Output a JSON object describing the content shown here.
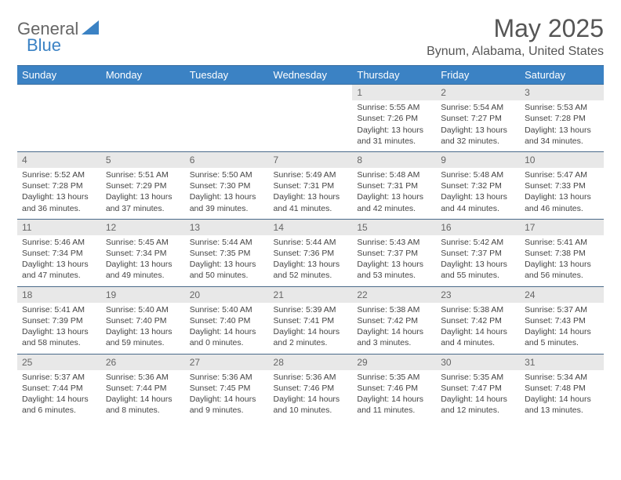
{
  "logo": {
    "general": "General",
    "blue": "Blue"
  },
  "title": "May 2025",
  "location": "Bynum, Alabama, United States",
  "colors": {
    "header_bg": "#3b82c4",
    "header_text": "#ffffff",
    "daynum_bg": "#e8e8e8",
    "text": "#444444",
    "border": "#4a6a8a"
  },
  "weekdays": [
    "Sunday",
    "Monday",
    "Tuesday",
    "Wednesday",
    "Thursday",
    "Friday",
    "Saturday"
  ],
  "weeks": [
    [
      null,
      null,
      null,
      null,
      {
        "n": "1",
        "sr": "5:55 AM",
        "ss": "7:26 PM",
        "dl": "13 hours and 31 minutes."
      },
      {
        "n": "2",
        "sr": "5:54 AM",
        "ss": "7:27 PM",
        "dl": "13 hours and 32 minutes."
      },
      {
        "n": "3",
        "sr": "5:53 AM",
        "ss": "7:28 PM",
        "dl": "13 hours and 34 minutes."
      }
    ],
    [
      {
        "n": "4",
        "sr": "5:52 AM",
        "ss": "7:28 PM",
        "dl": "13 hours and 36 minutes."
      },
      {
        "n": "5",
        "sr": "5:51 AM",
        "ss": "7:29 PM",
        "dl": "13 hours and 37 minutes."
      },
      {
        "n": "6",
        "sr": "5:50 AM",
        "ss": "7:30 PM",
        "dl": "13 hours and 39 minutes."
      },
      {
        "n": "7",
        "sr": "5:49 AM",
        "ss": "7:31 PM",
        "dl": "13 hours and 41 minutes."
      },
      {
        "n": "8",
        "sr": "5:48 AM",
        "ss": "7:31 PM",
        "dl": "13 hours and 42 minutes."
      },
      {
        "n": "9",
        "sr": "5:48 AM",
        "ss": "7:32 PM",
        "dl": "13 hours and 44 minutes."
      },
      {
        "n": "10",
        "sr": "5:47 AM",
        "ss": "7:33 PM",
        "dl": "13 hours and 46 minutes."
      }
    ],
    [
      {
        "n": "11",
        "sr": "5:46 AM",
        "ss": "7:34 PM",
        "dl": "13 hours and 47 minutes."
      },
      {
        "n": "12",
        "sr": "5:45 AM",
        "ss": "7:34 PM",
        "dl": "13 hours and 49 minutes."
      },
      {
        "n": "13",
        "sr": "5:44 AM",
        "ss": "7:35 PM",
        "dl": "13 hours and 50 minutes."
      },
      {
        "n": "14",
        "sr": "5:44 AM",
        "ss": "7:36 PM",
        "dl": "13 hours and 52 minutes."
      },
      {
        "n": "15",
        "sr": "5:43 AM",
        "ss": "7:37 PM",
        "dl": "13 hours and 53 minutes."
      },
      {
        "n": "16",
        "sr": "5:42 AM",
        "ss": "7:37 PM",
        "dl": "13 hours and 55 minutes."
      },
      {
        "n": "17",
        "sr": "5:41 AM",
        "ss": "7:38 PM",
        "dl": "13 hours and 56 minutes."
      }
    ],
    [
      {
        "n": "18",
        "sr": "5:41 AM",
        "ss": "7:39 PM",
        "dl": "13 hours and 58 minutes."
      },
      {
        "n": "19",
        "sr": "5:40 AM",
        "ss": "7:40 PM",
        "dl": "13 hours and 59 minutes."
      },
      {
        "n": "20",
        "sr": "5:40 AM",
        "ss": "7:40 PM",
        "dl": "14 hours and 0 minutes."
      },
      {
        "n": "21",
        "sr": "5:39 AM",
        "ss": "7:41 PM",
        "dl": "14 hours and 2 minutes."
      },
      {
        "n": "22",
        "sr": "5:38 AM",
        "ss": "7:42 PM",
        "dl": "14 hours and 3 minutes."
      },
      {
        "n": "23",
        "sr": "5:38 AM",
        "ss": "7:42 PM",
        "dl": "14 hours and 4 minutes."
      },
      {
        "n": "24",
        "sr": "5:37 AM",
        "ss": "7:43 PM",
        "dl": "14 hours and 5 minutes."
      }
    ],
    [
      {
        "n": "25",
        "sr": "5:37 AM",
        "ss": "7:44 PM",
        "dl": "14 hours and 6 minutes."
      },
      {
        "n": "26",
        "sr": "5:36 AM",
        "ss": "7:44 PM",
        "dl": "14 hours and 8 minutes."
      },
      {
        "n": "27",
        "sr": "5:36 AM",
        "ss": "7:45 PM",
        "dl": "14 hours and 9 minutes."
      },
      {
        "n": "28",
        "sr": "5:36 AM",
        "ss": "7:46 PM",
        "dl": "14 hours and 10 minutes."
      },
      {
        "n": "29",
        "sr": "5:35 AM",
        "ss": "7:46 PM",
        "dl": "14 hours and 11 minutes."
      },
      {
        "n": "30",
        "sr": "5:35 AM",
        "ss": "7:47 PM",
        "dl": "14 hours and 12 minutes."
      },
      {
        "n": "31",
        "sr": "5:34 AM",
        "ss": "7:48 PM",
        "dl": "14 hours and 13 minutes."
      }
    ]
  ],
  "labels": {
    "sunrise": "Sunrise: ",
    "sunset": "Sunset: ",
    "daylight": "Daylight: "
  }
}
